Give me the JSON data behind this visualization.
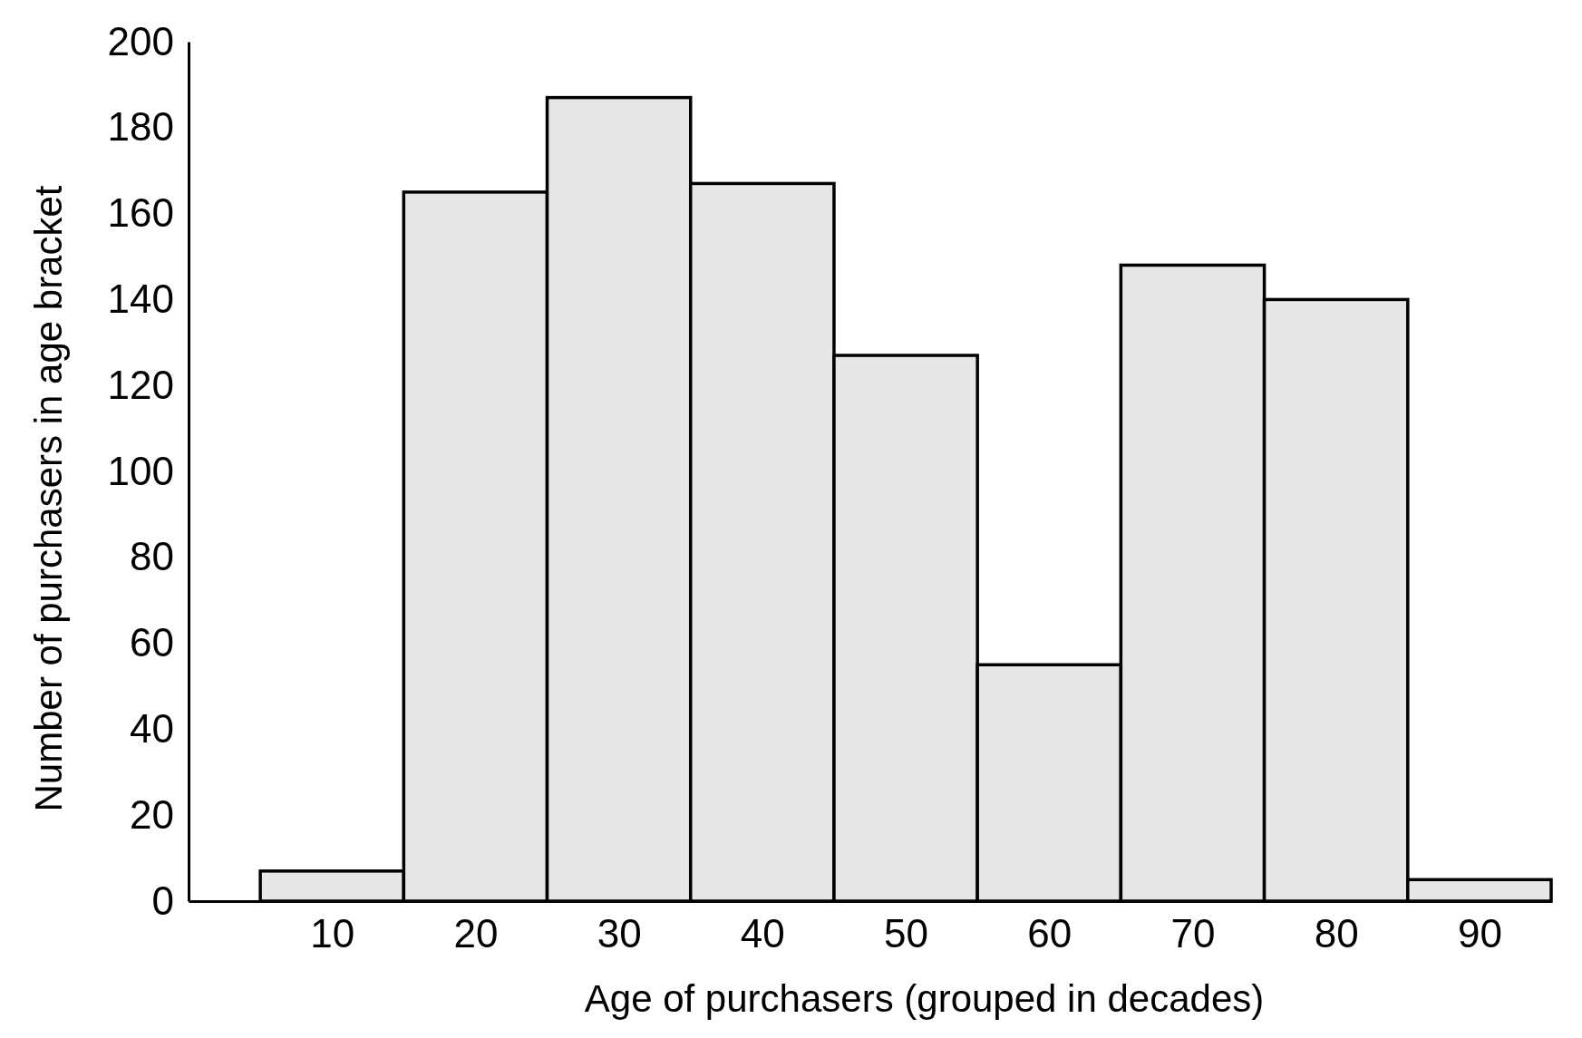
{
  "chart_data": {
    "type": "histogram",
    "xlabel": "Age of purchasers (grouped in decades)",
    "ylabel": "Number of purchasers in age bracket",
    "bins": [
      5,
      15,
      25,
      35,
      45,
      55,
      65,
      75,
      85,
      95
    ],
    "values": [
      7,
      165,
      187,
      167,
      127,
      55,
      148,
      140,
      5
    ],
    "color": "#e6e6e6",
    "xlim": [
      0,
      95
    ],
    "xticks": [
      10,
      20,
      30,
      40,
      50,
      60,
      70,
      80,
      90
    ],
    "ylim": [
      0,
      200
    ],
    "yticks": [
      0,
      20,
      40,
      60,
      80,
      100,
      120,
      140,
      160,
      180,
      200
    ]
  }
}
